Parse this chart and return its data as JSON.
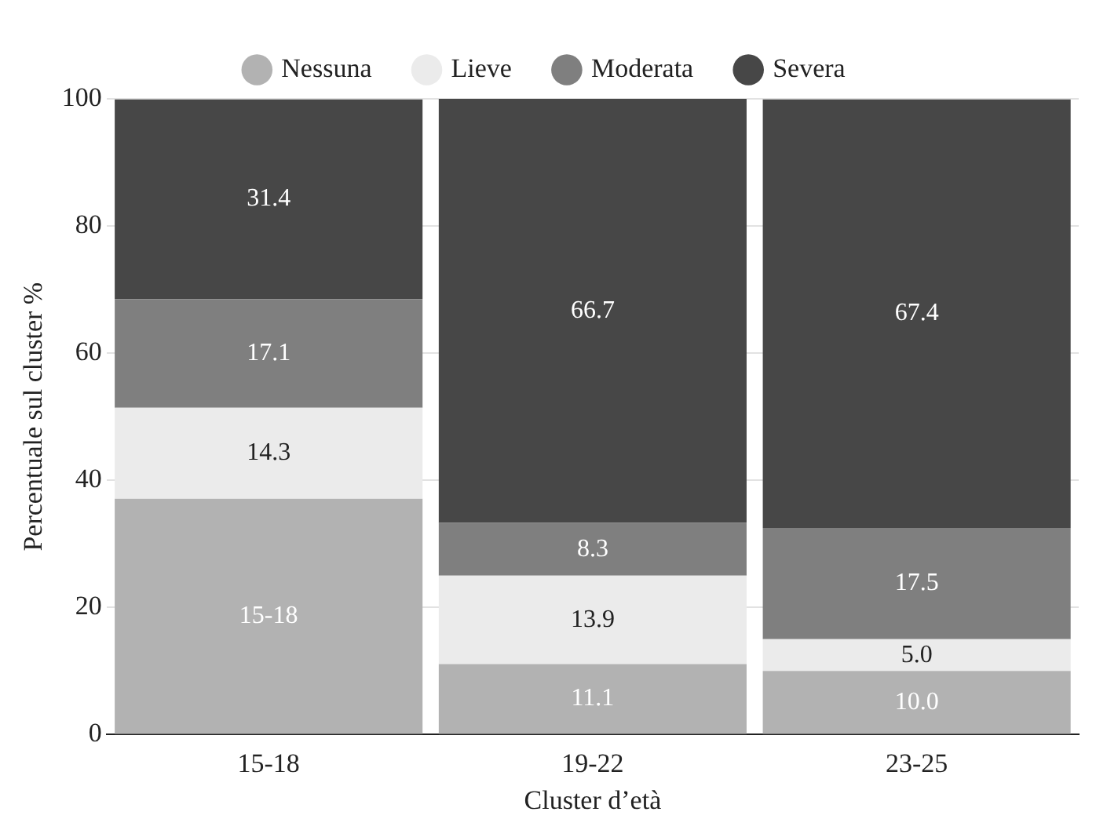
{
  "chart_data": {
    "type": "bar",
    "stacked": true,
    "xlabel": "Cluster d’età",
    "ylabel": "Percentuale sul cluster %",
    "categories": [
      "15-18",
      "19-22",
      "23-25"
    ],
    "series": [
      {
        "name": "Nessuna",
        "color": "#b2b2b2",
        "values": [
          37.1,
          11.1,
          10.0
        ],
        "value_labels": [
          "15-18",
          "11.1",
          "10.0"
        ]
      },
      {
        "name": "Lieve",
        "color": "#ebebeb",
        "values": [
          14.3,
          13.9,
          5.0
        ],
        "value_labels": [
          "14.3",
          "13.9",
          "5.0"
        ]
      },
      {
        "name": "Moderata",
        "color": "#7f7f7f",
        "values": [
          17.1,
          8.3,
          17.5
        ],
        "value_labels": [
          "17.1",
          "8.3",
          "17.5"
        ]
      },
      {
        "name": "Severa",
        "color": "#474747",
        "values": [
          31.4,
          66.7,
          67.4
        ],
        "value_labels": [
          "31.4",
          "66.7",
          "67.4"
        ]
      }
    ],
    "ylim": [
      0,
      100
    ],
    "yticks": [
      0,
      20,
      40,
      60,
      80,
      100
    ],
    "grid": "y",
    "legend": "top"
  }
}
